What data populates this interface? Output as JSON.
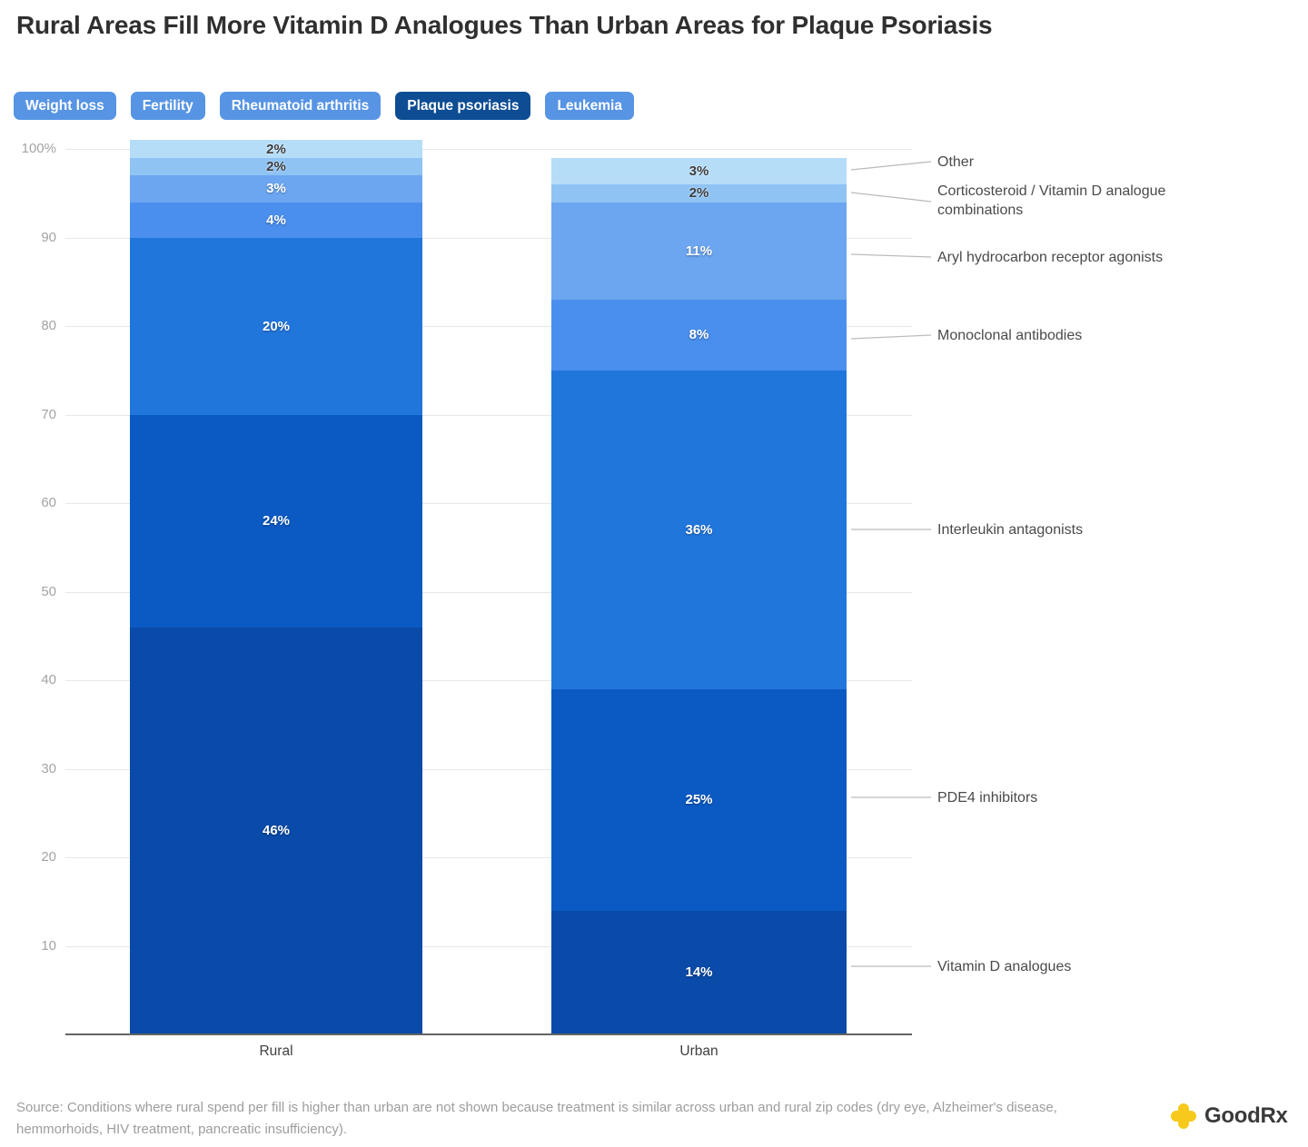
{
  "title": "Rural Areas Fill More Vitamin D Analogues Than Urban Areas for Plaque Psoriasis",
  "tabs": [
    {
      "label": "Weight loss",
      "selected": false
    },
    {
      "label": "Fertility",
      "selected": false
    },
    {
      "label": "Rheumatoid arthritis",
      "selected": false
    },
    {
      "label": "Plaque psoriasis",
      "selected": true
    },
    {
      "label": "Leukemia",
      "selected": false
    }
  ],
  "chart_data": {
    "type": "bar",
    "subtype": "stacked-percentage-column",
    "categories": [
      "Rural",
      "Urban"
    ],
    "series": [
      {
        "name": "Vitamin D analogues",
        "values": [
          46,
          14
        ],
        "color": "#0a4aa8",
        "value_label_style": "light"
      },
      {
        "name": "PDE4 inhibitors",
        "values": [
          24,
          25
        ],
        "color": "#0b5ac3",
        "value_label_style": "light"
      },
      {
        "name": "Interleukin antagonists",
        "values": [
          20,
          36
        ],
        "color": "#2176dc",
        "value_label_style": "light"
      },
      {
        "name": "Monoclonal antibodies",
        "values": [
          4,
          8
        ],
        "color": "#4a8fee",
        "value_label_style": "light"
      },
      {
        "name": "Aryl hydrocarbon receptor agonists",
        "values": [
          3,
          11
        ],
        "color": "#6ca6f0",
        "value_label_style": "light"
      },
      {
        "name": "Corticosteroid / Vitamin D analogue combinations",
        "values": [
          2,
          2
        ],
        "color": "#8fc3f4",
        "value_label_style": "dark"
      },
      {
        "name": "Other",
        "values": [
          2,
          3
        ],
        "color": "#b6ddf8",
        "value_label_style": "dark"
      }
    ],
    "value_suffix": "%",
    "ylabel": "",
    "xlabel": "",
    "ylim": [
      0,
      100
    ],
    "y_ticks": [
      {
        "value": 10,
        "label": "10"
      },
      {
        "value": 20,
        "label": "20"
      },
      {
        "value": 30,
        "label": "30"
      },
      {
        "value": 40,
        "label": "40"
      },
      {
        "value": 50,
        "label": "50"
      },
      {
        "value": 60,
        "label": "60"
      },
      {
        "value": 70,
        "label": "70"
      },
      {
        "value": 80,
        "label": "80"
      },
      {
        "value": 90,
        "label": "90"
      },
      {
        "value": 100,
        "label": "100%"
      }
    ],
    "grid": true,
    "legend_position": "right-annotations",
    "annotation_labels": [
      "Other",
      "Corticosteroid / Vitamin D analogue combinations",
      "Aryl hydrocarbon receptor agonists",
      "Monoclonal antibodies",
      "Interleukin antagonists",
      "PDE4 inhibitors",
      "Vitamin D analogues"
    ]
  },
  "source": "Source: Conditions where rural spend per fill is higher than urban are not shown because treatment is similar across urban and rural zip codes (dry eye, Alzheimer's disease, hemmorhoids, HIV treatment, pancreatic insufficiency).",
  "logo": {
    "text": "GoodRx"
  },
  "colors": {
    "tab_default": "#5794e4",
    "tab_selected": "#0e4d94",
    "gridline": "#e7e7e7",
    "axis": "#636363",
    "leader_line": "#bcbcbc",
    "logo_yellow": "#f6c91c"
  }
}
